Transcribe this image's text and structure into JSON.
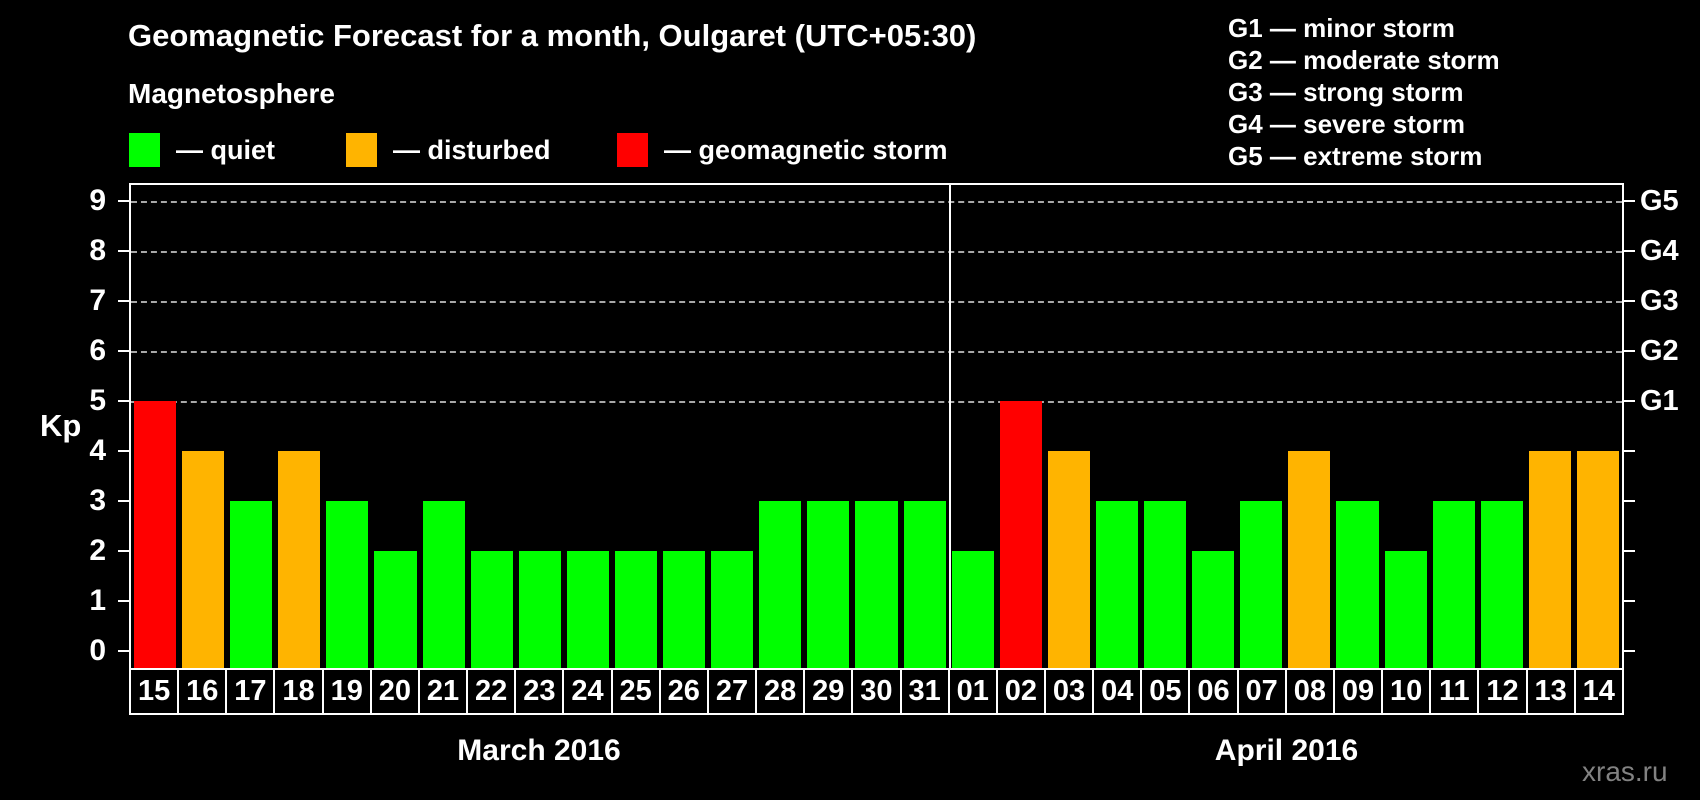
{
  "header": {
    "title": "Geomagnetic Forecast for a month, Oulgaret (UTC+05:30)",
    "subtitle": "Magnetosphere"
  },
  "legend": {
    "items": [
      {
        "name": "quiet",
        "label": "— quiet",
        "color": "#00ff00"
      },
      {
        "name": "disturbed",
        "label": "— disturbed",
        "color": "#ffb400"
      },
      {
        "name": "storm",
        "label": "— geomagnetic storm",
        "color": "#ff0000"
      }
    ]
  },
  "g_legend": [
    "G1 — minor storm",
    "G2 — moderate storm",
    "G3 — strong storm",
    "G4 — severe storm",
    "G5 — extreme storm"
  ],
  "watermark": "xras.ru",
  "chart_data": {
    "type": "bar",
    "title": "Geomagnetic Forecast for a month, Oulgaret (UTC+05:30)",
    "ylabel": "Kp",
    "ylim": [
      0,
      9.4
    ],
    "y_ticks": [
      "0",
      "1",
      "2",
      "3",
      "4",
      "5",
      "6",
      "7",
      "8",
      "9"
    ],
    "gridlines_at_kp": [
      5,
      6,
      7,
      8,
      9
    ],
    "grid": "dashed, only at storm levels G1-G5",
    "legend_position": "top",
    "right_axis": [
      {
        "kp": 5,
        "label": "G1"
      },
      {
        "kp": 6,
        "label": "G2"
      },
      {
        "kp": 7,
        "label": "G3"
      },
      {
        "kp": 8,
        "label": "G4"
      },
      {
        "kp": 9,
        "label": "G5"
      }
    ],
    "series": [
      {
        "name": "March 2016",
        "categories": [
          "15",
          "16",
          "17",
          "18",
          "19",
          "20",
          "21",
          "22",
          "23",
          "24",
          "25",
          "26",
          "27",
          "28",
          "29",
          "30",
          "31"
        ],
        "values": [
          5,
          4,
          3,
          4,
          3,
          2,
          3,
          2,
          2,
          2,
          2,
          2,
          2,
          3,
          3,
          3,
          3
        ]
      },
      {
        "name": "April 2016",
        "categories": [
          "01",
          "02",
          "03",
          "04",
          "05",
          "06",
          "07",
          "08",
          "09",
          "10",
          "11",
          "12",
          "13",
          "14"
        ],
        "values": [
          2,
          5,
          4,
          3,
          3,
          2,
          3,
          4,
          3,
          2,
          3,
          3,
          4,
          4
        ]
      }
    ],
    "palette": {
      "quiet": "#00ff00",
      "disturbed": "#ffb400",
      "storm": "#ff0000"
    },
    "color_rule": {
      "storm_min_kp": 5,
      "disturbed_kp": 4,
      "quiet_max_kp": 3
    }
  }
}
